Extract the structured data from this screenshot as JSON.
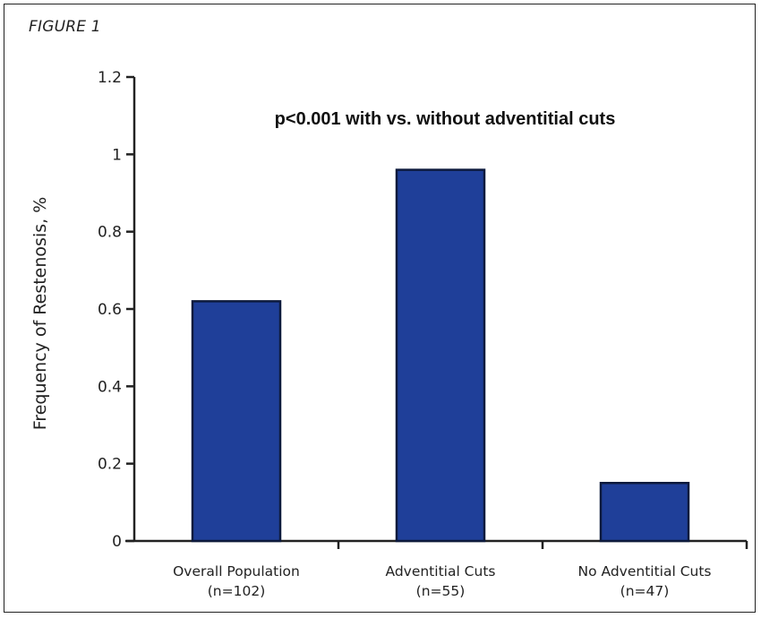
{
  "figure_label": "FIGURE 1",
  "chart_data": {
    "type": "bar",
    "categories": [
      "Overall Population",
      "Adventitial Cuts",
      "No Adventitial Cuts"
    ],
    "category_sublabels": [
      "(n=102)",
      "(n=55)",
      "(n=47)"
    ],
    "values": [
      0.62,
      0.96,
      0.15
    ],
    "title": "",
    "annotation": "p<0.001 with vs. without adventitial cuts",
    "xlabel": "",
    "ylabel": "Frequency of Restenosis, %",
    "ylim": [
      0,
      1.2
    ],
    "yticks": [
      "0",
      "0.2",
      "0.4",
      "0.6",
      "0.8",
      "1",
      "1.2"
    ],
    "grid": false,
    "bar_color": "#1f3f99",
    "bar_edge_color": "#0d1a3d"
  }
}
